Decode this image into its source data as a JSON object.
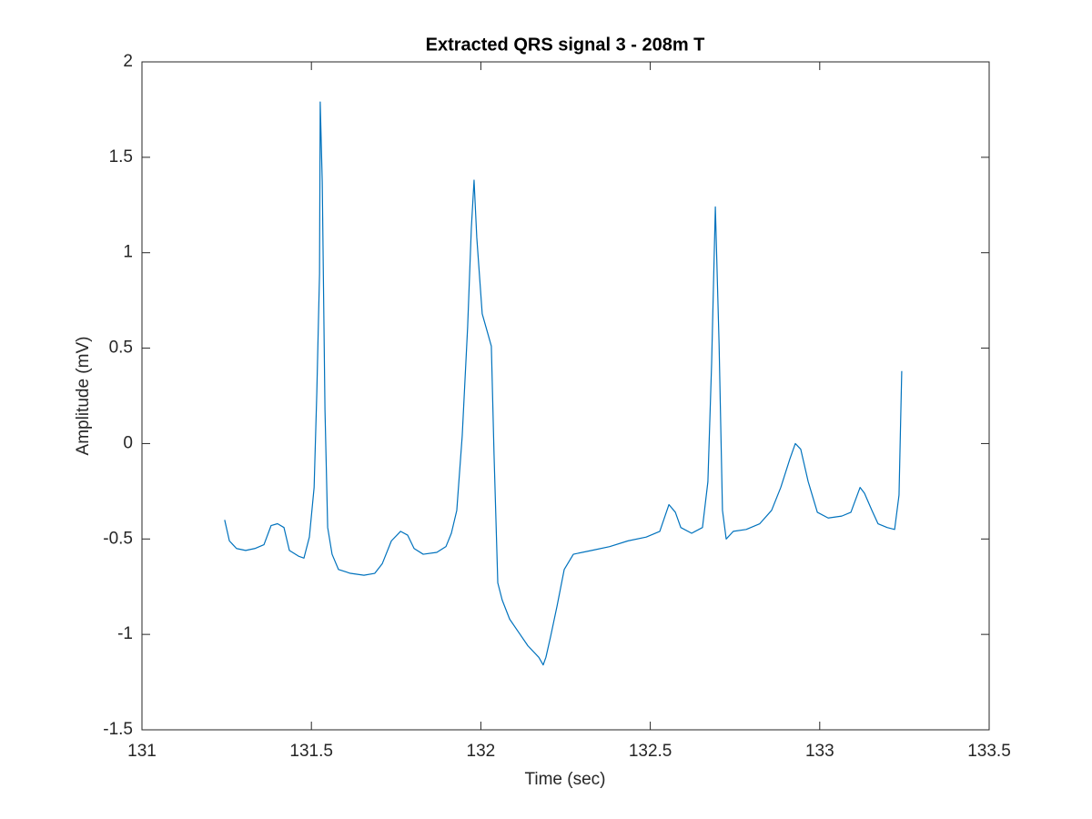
{
  "chart_data": {
    "type": "line",
    "title": "Extracted QRS signal 3 - 208m T",
    "xlabel": "Time (sec)",
    "ylabel": "Amplitude (mV)",
    "xlim": [
      131,
      133.5
    ],
    "xticks": [
      131,
      131.5,
      132,
      132.5,
      133,
      133.5
    ],
    "ylim": [
      -1.5,
      2
    ],
    "yticks": [
      -1.5,
      -1,
      -0.5,
      0,
      0.5,
      1,
      1.5,
      2
    ],
    "grid": false,
    "series": [
      {
        "color": "#0072bd",
        "x": [
          131.244,
          131.258,
          131.279,
          131.306,
          131.333,
          131.36,
          131.381,
          131.4,
          131.419,
          131.435,
          131.462,
          131.478,
          131.494,
          131.508,
          131.516,
          131.524,
          131.526,
          131.532,
          131.54,
          131.548,
          131.561,
          131.58,
          131.615,
          131.655,
          131.687,
          131.709,
          131.736,
          131.763,
          131.784,
          131.803,
          131.83,
          131.87,
          131.897,
          131.913,
          131.929,
          131.945,
          131.961,
          131.972,
          131.98,
          131.988,
          132.004,
          132.02,
          132.031,
          132.039,
          132.05,
          132.063,
          132.085,
          132.112,
          132.139,
          132.171,
          132.184,
          132.192,
          132.206,
          132.225,
          132.246,
          132.273,
          132.327,
          132.38,
          132.434,
          132.488,
          132.528,
          132.555,
          132.574,
          132.59,
          132.622,
          132.654,
          132.67,
          132.681,
          132.692,
          132.703,
          132.713,
          132.724,
          132.745,
          132.783,
          132.823,
          132.858,
          132.885,
          132.912,
          132.928,
          132.944,
          132.966,
          132.993,
          133.025,
          133.065,
          133.092,
          133.119,
          133.132,
          133.154,
          133.172,
          133.199,
          133.221,
          133.234,
          133.242
        ],
        "values": [
          -0.4,
          -0.51,
          -0.55,
          -0.56,
          -0.55,
          -0.53,
          -0.43,
          -0.42,
          -0.44,
          -0.56,
          -0.59,
          -0.6,
          -0.49,
          -0.23,
          0.27,
          0.89,
          1.79,
          1.37,
          0.18,
          -0.44,
          -0.58,
          -0.66,
          -0.68,
          -0.69,
          -0.68,
          -0.63,
          -0.51,
          -0.46,
          -0.48,
          -0.55,
          -0.58,
          -0.57,
          -0.54,
          -0.47,
          -0.35,
          0.04,
          0.61,
          1.13,
          1.38,
          1.08,
          0.68,
          0.58,
          0.51,
          -0.06,
          -0.73,
          -0.82,
          -0.92,
          -0.99,
          -1.06,
          -1.12,
          -1.16,
          -1.12,
          -1.01,
          -0.85,
          -0.66,
          -0.58,
          -0.56,
          -0.54,
          -0.51,
          -0.49,
          -0.46,
          -0.32,
          -0.36,
          -0.44,
          -0.47,
          -0.44,
          -0.2,
          0.42,
          1.24,
          0.52,
          -0.35,
          -0.5,
          -0.46,
          -0.45,
          -0.42,
          -0.35,
          -0.23,
          -0.08,
          0.0,
          -0.03,
          -0.2,
          -0.36,
          -0.39,
          -0.38,
          -0.36,
          -0.23,
          -0.26,
          -0.35,
          -0.42,
          -0.44,
          -0.45,
          -0.27,
          0.38
        ]
      }
    ]
  }
}
